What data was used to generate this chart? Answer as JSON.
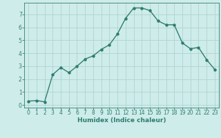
{
  "x": [
    0,
    1,
    2,
    3,
    4,
    5,
    6,
    7,
    8,
    9,
    10,
    11,
    12,
    13,
    14,
    15,
    16,
    17,
    18,
    19,
    20,
    21,
    22,
    23
  ],
  "y": [
    0.3,
    0.35,
    0.25,
    2.35,
    2.9,
    2.5,
    3.0,
    3.55,
    3.8,
    4.3,
    4.65,
    5.5,
    6.7,
    7.5,
    7.5,
    7.3,
    6.5,
    6.2,
    6.2,
    4.8,
    4.35,
    4.45,
    3.5,
    2.75
  ],
  "line_color": "#2e7d6e",
  "marker": "o",
  "marker_size": 2.2,
  "line_width": 1.0,
  "bg_color": "#ceecea",
  "grid_color": "#aed4d0",
  "tick_color": "#2e7d6e",
  "label_color": "#2e7d6e",
  "xlabel": "Humidex (Indice chaleur)",
  "ylabel": "",
  "xlim": [
    -0.5,
    23.5
  ],
  "ylim": [
    -0.2,
    7.9
  ],
  "yticks": [
    0,
    1,
    2,
    3,
    4,
    5,
    6,
    7
  ],
  "xticks": [
    0,
    1,
    2,
    3,
    4,
    5,
    6,
    7,
    8,
    9,
    10,
    11,
    12,
    13,
    14,
    15,
    16,
    17,
    18,
    19,
    20,
    21,
    22,
    23
  ],
  "font_size_label": 6.5,
  "font_size_tick": 5.5
}
